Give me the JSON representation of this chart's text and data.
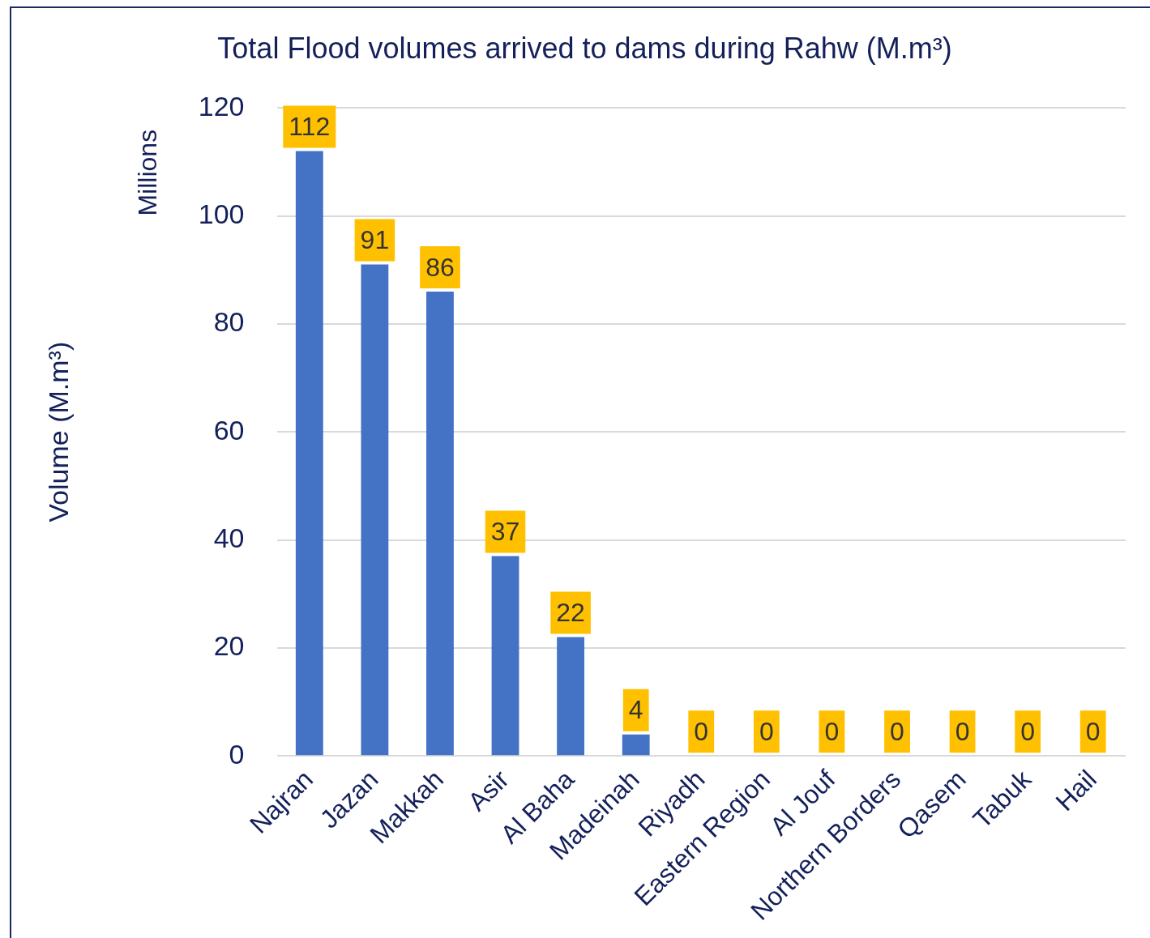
{
  "chart_data": {
    "type": "bar",
    "title": "Total Flood volumes arrived to dams during Rahw (M.m³)",
    "ylabel": "Volume (M.m³)",
    "annotations": [
      "Millions"
    ],
    "categories": [
      "Najran",
      "Jazan",
      "Makkah",
      "Asir",
      "Al Baha",
      "Madeinah",
      "Riyadh",
      "Eastern Region",
      "Al Jouf",
      "Northern Borders",
      "Qasem",
      "Tabuk",
      "Hail"
    ],
    "values": [
      112,
      91,
      86,
      37,
      22,
      4,
      0,
      0,
      0,
      0,
      0,
      0,
      0
    ],
    "color": "#4472c4",
    "ylim": [
      0,
      120
    ],
    "yticks": [
      0,
      20,
      40,
      60,
      80,
      100,
      120
    ],
    "grid": "y",
    "legend": false,
    "data_labels": true
  }
}
